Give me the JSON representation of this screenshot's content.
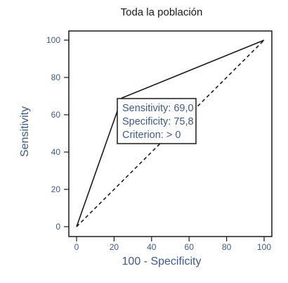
{
  "chart_data": {
    "type": "line",
    "title": "Toda la población",
    "xlabel": "100 - Specificity",
    "ylabel": "Sensitivity",
    "xlim": [
      0,
      100
    ],
    "ylim": [
      0,
      100
    ],
    "xticks": [
      "0",
      "20",
      "40",
      "60",
      "80",
      "100"
    ],
    "yticks": [
      "0",
      "20",
      "40",
      "60",
      "80",
      "100"
    ],
    "grid": false,
    "series": [
      {
        "style": "solid",
        "x": [
          0,
          24.2,
          100
        ],
        "y": [
          0,
          69.0,
          100
        ]
      },
      {
        "style": "dashed",
        "x": [
          0,
          100
        ],
        "y": [
          0,
          100
        ]
      }
    ],
    "annotation": {
      "lines": [
        "Sensitivity: 69,0",
        "Specificity: 75,8",
        "Criterion: > 0"
      ]
    },
    "colors": {
      "text": "#3b5a98",
      "line": "#1a1a1a",
      "title": "#1a1a1a"
    }
  }
}
